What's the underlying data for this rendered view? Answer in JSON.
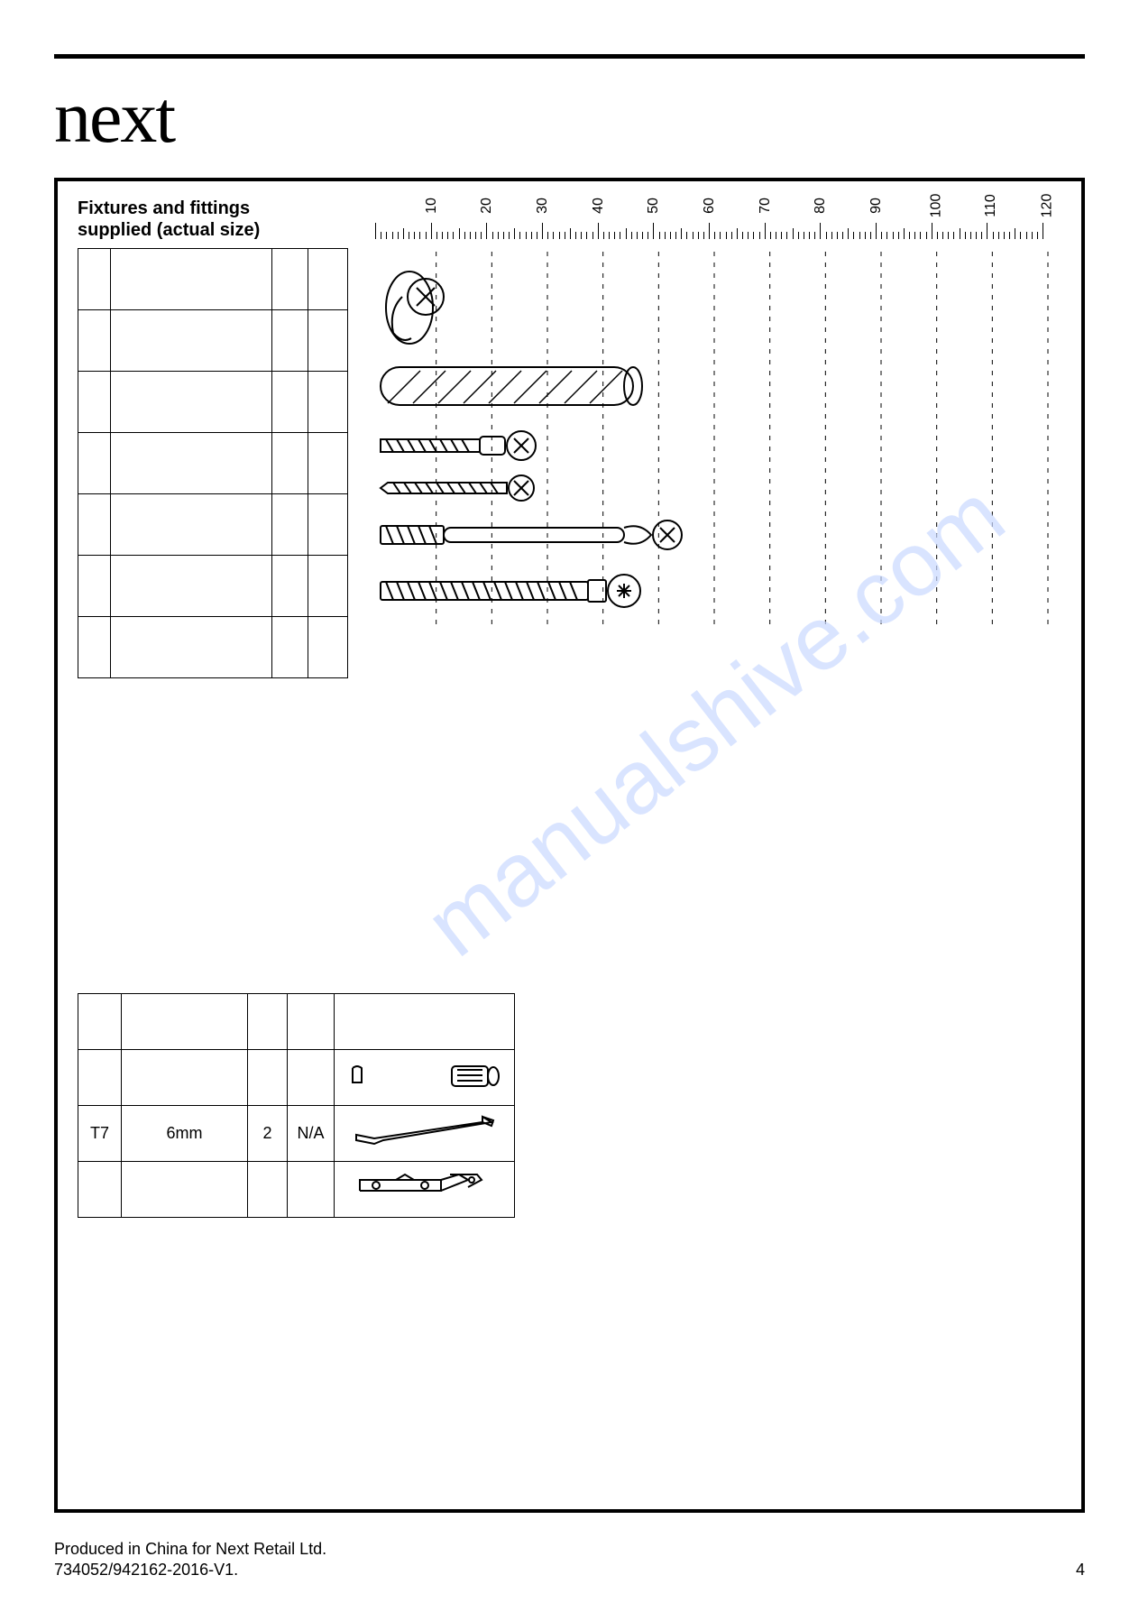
{
  "brand": "next",
  "section_title_line1": "Fixtures and fittings",
  "section_title_line2": "supplied (actual size)",
  "ruler": {
    "min": 0,
    "max": 120,
    "major_step": 10,
    "labels": [
      "10",
      "20",
      "30",
      "40",
      "50",
      "60",
      "70",
      "80",
      "90",
      "100",
      "110",
      "120"
    ]
  },
  "bottom_rows": [
    {
      "code": "",
      "size": "",
      "qty": "",
      "spare": "",
      "icon": "blank"
    },
    {
      "code": "",
      "size": "",
      "qty": "",
      "spare": "",
      "icon": "magnet"
    },
    {
      "code": "T7",
      "size": "6mm",
      "qty": "2",
      "spare": "N/A",
      "icon": "allen"
    },
    {
      "code": "",
      "size": "",
      "qty": "",
      "spare": "",
      "icon": "bracket"
    }
  ],
  "watermark_text": "manualshive.com",
  "footer_line1": "Produced in China for Next Retail Ltd.",
  "footer_line2": "734052/942162-2016-V1.",
  "page_number": "4",
  "colors": {
    "line": "#000000",
    "bg": "#ffffff",
    "watermark": "#c9d9ff"
  }
}
